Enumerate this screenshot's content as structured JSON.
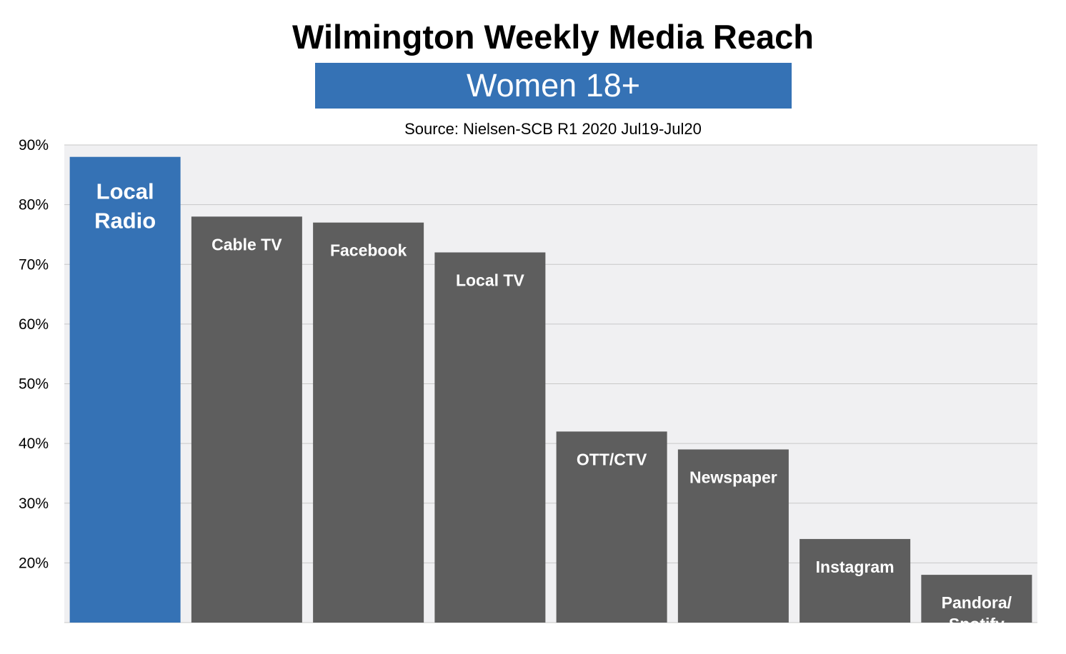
{
  "chart_data": {
    "type": "bar",
    "title": "Wilmington Weekly Media Reach",
    "subtitle": "Women 18+",
    "source": "Source: Nielsen-SCB R1 2020 Jul19-Jul20",
    "categories": [
      "Local Radio",
      "Cable TV",
      "Facebook",
      "Local TV",
      "OTT/CTV",
      "Newspaper",
      "Instagram",
      "Pandora/ Spotify"
    ],
    "label_lines": [
      [
        "Local",
        "Radio"
      ],
      [
        "Cable TV"
      ],
      [
        "Facebook"
      ],
      [
        "Local TV"
      ],
      [
        "OTT/CTV"
      ],
      [
        "Newspaper"
      ],
      [
        "Instagram"
      ],
      [
        "Pandora/",
        "Spotify"
      ]
    ],
    "values": [
      88,
      78,
      77,
      72,
      42,
      39,
      24,
      18
    ],
    "highlight_index": 0,
    "ylim": [
      10,
      90
    ],
    "yticks": [
      20,
      30,
      40,
      50,
      60,
      70,
      80,
      90
    ],
    "ytick_labels": [
      "20%",
      "30%",
      "40%",
      "50%",
      "60%",
      "70%",
      "80%",
      "90%"
    ],
    "grid": true,
    "colors": {
      "highlight": "#3572b5",
      "bar": "#5e5e5e",
      "plot_background": "#f0f0f2",
      "grid": "#c8c8c8",
      "subtitle_background": "#3572b5"
    }
  }
}
